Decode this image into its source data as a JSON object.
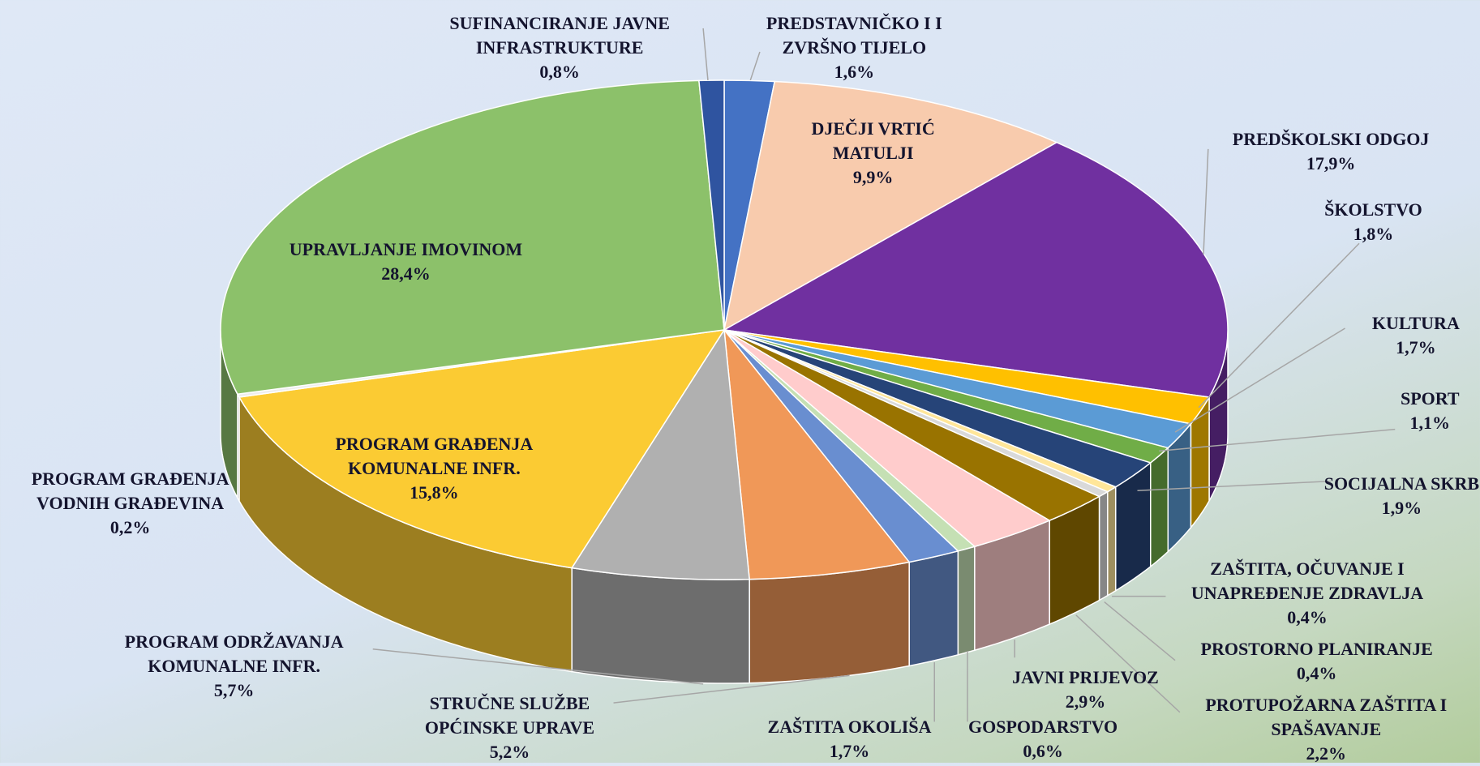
{
  "chart_data": {
    "type": "pie3d",
    "categories": [
      "PREDSTAVNIČKO I IZVRŠNO TIJELO",
      "DJEČJI VRTIĆ MATULJI",
      "PREDŠKOLSKI ODGOJ",
      "ŠKOLSTVO",
      "KULTURA",
      "SPORT",
      "SOCIJALNA SKRB",
      "ZAŠTITA, OČUVANJE I UNAPREĐENJE ZDRAVLJA",
      "PROSTORNO PLANIRANJE",
      "PROTUPOŽARNA ZAŠTITA I SPAŠAVANJE",
      "JAVNI PRIJEVOZ",
      "GOSPODARSTVO",
      "ZAŠTITA OKOLIŠA",
      "STRUČNE SLUŽBE OPĆINSKE UPRAVE",
      "PROGRAM ODRŽAVANJA KOMUNALNE INFR.",
      "PROGRAM GRAĐENJA KOMUNALNE INFR.",
      "PROGRAM GRAĐENJA VODNIH GRAĐEVINA",
      "UPRAVLJANJE IMOVINOM",
      "SUFINANCIRANJE JAVNE INFRASTRUKTURE"
    ],
    "values": [
      1.6,
      9.9,
      17.9,
      1.8,
      1.7,
      1.1,
      1.9,
      0.4,
      0.4,
      2.2,
      2.9,
      0.6,
      1.7,
      5.2,
      5.7,
      15.8,
      0.2,
      28.4,
      0.8
    ],
    "value_labels": [
      "1,6%",
      "9,9%",
      "17,9%",
      "1,8%",
      "1,7%",
      "1,1%",
      "1,9%",
      "0,4%",
      "0,4%",
      "2,2%",
      "2,9%",
      "0,6%",
      "1,7%",
      "5,2%",
      "5,7%",
      "15,8%",
      "0,2%",
      "28,4%",
      "0,8%"
    ],
    "colors": [
      "#4472c4",
      "#f8cbad",
      "#7030a0",
      "#ffc000",
      "#5b9bd5",
      "#70ad47",
      "#264478",
      "#ffe699",
      "#d9d9d9",
      "#997300",
      "#ffcccc",
      "#c5e0b4",
      "#698ed0",
      "#f09858",
      "#b0b0b0",
      "#fbcb33",
      "#eeeeee",
      "#8cc16a",
      "#2f54a0"
    ]
  }
}
